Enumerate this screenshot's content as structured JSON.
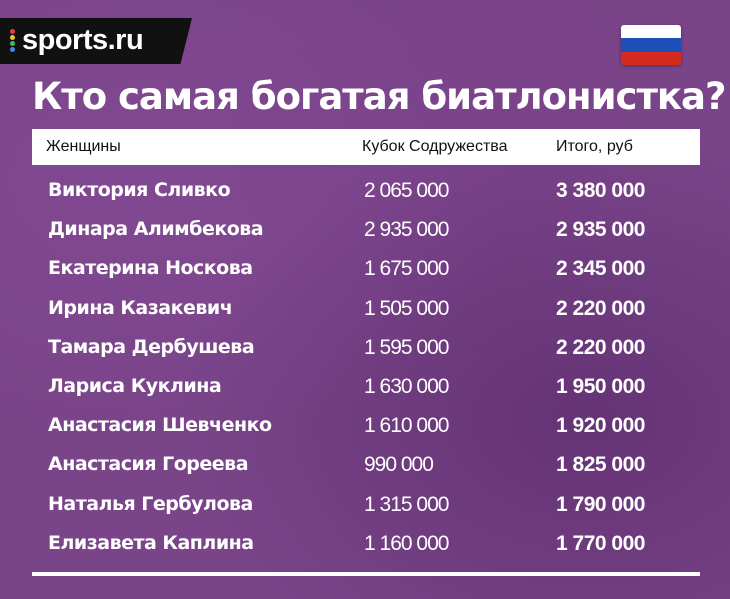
{
  "brand": {
    "logo_text": "sports.ru",
    "dot_colors": [
      "#e63b3b",
      "#f2c230",
      "#3bbf5a",
      "#3b8fe6"
    ]
  },
  "flag": {
    "name": "russia-flag",
    "colors": [
      "#ffffff",
      "#1d4fb8",
      "#d52b1e"
    ]
  },
  "title": "Кто самая богатая биатлонистка?",
  "table": {
    "headers": [
      "Женщины",
      "Кубок Содружества",
      "Итого, руб"
    ],
    "rows": [
      {
        "name": "Виктория Сливко",
        "cup": "2 065 000",
        "total": "3 380 000"
      },
      {
        "name": "Динара Алимбекова",
        "cup": "2 935 000",
        "total": "2 935 000"
      },
      {
        "name": "Екатерина Носкова",
        "cup": "1 675 000",
        "total": "2 345 000"
      },
      {
        "name": "Ирина Казакевич",
        "cup": "1 505 000",
        "total": "2 220 000"
      },
      {
        "name": "Тамара Дербушева",
        "cup": "1 595 000",
        "total": "2 220 000"
      },
      {
        "name": "Лариса Куклина",
        "cup": "1 630 000",
        "total": "1 950 000"
      },
      {
        "name": "Анастасия Шевченко",
        "cup": "1 610 000",
        "total": "1 920 000"
      },
      {
        "name": "Анастасия Гореева",
        "cup": "990 000",
        "total": "1 825 000"
      },
      {
        "name": "Наталья Гербулова",
        "cup": "1 315 000",
        "total": "1 790 000"
      },
      {
        "name": "Елизавета Каплина",
        "cup": "1 160 000",
        "total": "1 770 000"
      }
    ]
  },
  "colors": {
    "background": "#7a4489",
    "text": "#ffffff",
    "header_bg": "#ffffff"
  }
}
